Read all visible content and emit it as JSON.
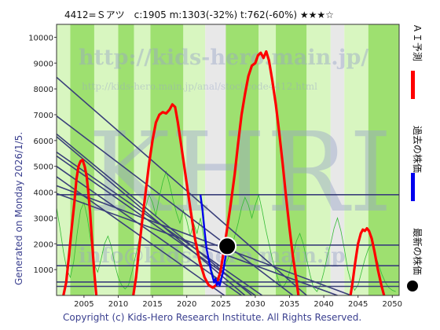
{
  "title": "4412=Ｓアツ　c:1905  m:1303(-32%)  t:762(-60%)  ★★★☆",
  "side_text": "Generated on Monday 2026/1/5.",
  "copyright": "Copyright (c) Kids-Hero Research Institute. All Rights Reserved.",
  "watermarks": {
    "url_main": "http://kids-hero.main.jp/",
    "url_sub": "http://kids-hero.main.jp/anal/stockcode4412.html",
    "big": "KHRI",
    "email": "info@kids-hero.main.jp"
  },
  "legend": [
    {
      "label": "ＡＩ予測",
      "color": "#ff0000"
    },
    {
      "label": "過去の株価",
      "color": "#0000ee"
    },
    {
      "label": "最新の株価",
      "color": "#000000"
    }
  ],
  "colors": {
    "band_dark": "#9ee070",
    "band_light": "#d8f6c0",
    "band_gray": "#e8e8e8",
    "trend": "#3a3f7a",
    "ai": "#ff0000",
    "past": "#0000ee",
    "thin_green": "#33bb33",
    "border": "#333333"
  },
  "chart_data": {
    "type": "line",
    "xlim": [
      2001,
      2051
    ],
    "ylim": [
      0,
      10500
    ],
    "x_ticks": [
      "2005",
      "2010",
      "2015",
      "2020",
      "2025",
      "2030",
      "2035",
      "2040",
      "2045",
      "2050"
    ],
    "y_ticks": [
      "1000",
      "2000",
      "3000",
      "4000",
      "5000",
      "6000",
      "7000",
      "8000",
      "9000",
      "10000"
    ],
    "bands": [
      {
        "x0": 2001.0,
        "x1": 2003.0,
        "shade": "light"
      },
      {
        "x0": 2003.0,
        "x1": 2006.5,
        "shade": "dark"
      },
      {
        "x0": 2006.5,
        "x1": 2010.0,
        "shade": "light"
      },
      {
        "x0": 2010.0,
        "x1": 2012.3,
        "shade": "dark"
      },
      {
        "x0": 2012.3,
        "x1": 2014.7,
        "shade": "light"
      },
      {
        "x0": 2014.7,
        "x1": 2019.5,
        "shade": "dark"
      },
      {
        "x0": 2019.5,
        "x1": 2022.7,
        "shade": "light"
      },
      {
        "x0": 2022.7,
        "x1": 2025.7,
        "shade": "gray"
      },
      {
        "x0": 2025.7,
        "x1": 2030.5,
        "shade": "dark"
      },
      {
        "x0": 2030.5,
        "x1": 2033.0,
        "shade": "light"
      },
      {
        "x0": 2033.0,
        "x1": 2037.5,
        "shade": "dark"
      },
      {
        "x0": 2037.5,
        "x1": 2041.0,
        "shade": "light"
      },
      {
        "x0": 2041.0,
        "x1": 2043.0,
        "shade": "gray"
      },
      {
        "x0": 2043.0,
        "x1": 2046.5,
        "shade": "light"
      },
      {
        "x0": 2046.5,
        "x1": 2051.0,
        "shade": "dark"
      }
    ],
    "horizontal_lines": [
      3900,
      1950,
      1150,
      520,
      350
    ],
    "trend_lines": [
      {
        "x0": 2001,
        "y0": 8450,
        "x1": 2037.5,
        "y1": 0
      },
      {
        "x0": 2001,
        "y0": 6950,
        "x1": 2035.5,
        "y1": 0
      },
      {
        "x0": 2001,
        "y0": 6250,
        "x1": 2029.5,
        "y1": 0
      },
      {
        "x0": 2001,
        "y0": 6150,
        "x1": 2028.5,
        "y1": 0
      },
      {
        "x0": 2001,
        "y0": 5550,
        "x1": 2031.0,
        "y1": 0
      },
      {
        "x0": 2001,
        "y0": 5400,
        "x1": 2030.0,
        "y1": 0
      },
      {
        "x0": 2001,
        "y0": 5000,
        "x1": 2028.0,
        "y1": 0
      },
      {
        "x0": 2001,
        "y0": 4600,
        "x1": 2025.5,
        "y1": 0
      },
      {
        "x0": 2001,
        "y0": 4250,
        "x1": 2044.0,
        "y1": 0
      },
      {
        "x0": 2001,
        "y0": 3950,
        "x1": 2042.0,
        "y1": 0
      }
    ],
    "series": [
      {
        "name": "ＡＩ予測",
        "points": [
          [
            2002.0,
            0
          ],
          [
            2002.4,
            500
          ],
          [
            2002.8,
            1500
          ],
          [
            2003.2,
            2600
          ],
          [
            2003.6,
            3600
          ],
          [
            2003.9,
            4500
          ],
          [
            2004.2,
            5000
          ],
          [
            2004.5,
            5200
          ],
          [
            2004.8,
            5250
          ],
          [
            2005.1,
            5000
          ],
          [
            2005.4,
            4600
          ],
          [
            2005.6,
            4100
          ],
          [
            2005.9,
            3200
          ],
          [
            2006.2,
            2000
          ],
          [
            2006.5,
            900
          ],
          [
            2006.8,
            0
          ],
          [
            2012.2,
            0
          ],
          [
            2012.6,
            700
          ],
          [
            2013.0,
            1700
          ],
          [
            2013.5,
            2900
          ],
          [
            2014.0,
            4000
          ],
          [
            2014.5,
            5100
          ],
          [
            2015.0,
            6000
          ],
          [
            2015.5,
            6700
          ],
          [
            2016.0,
            7000
          ],
          [
            2016.5,
            7100
          ],
          [
            2017.0,
            7050
          ],
          [
            2017.5,
            7200
          ],
          [
            2017.9,
            7400
          ],
          [
            2018.3,
            7300
          ],
          [
            2018.7,
            6700
          ],
          [
            2019.2,
            5800
          ],
          [
            2019.8,
            4700
          ],
          [
            2020.5,
            3400
          ],
          [
            2021.2,
            2200
          ],
          [
            2021.9,
            1300
          ],
          [
            2022.6,
            700
          ],
          [
            2023.2,
            400
          ],
          [
            2023.8,
            300
          ],
          [
            2024.3,
            400
          ],
          [
            2024.9,
            900
          ],
          [
            2025.4,
            1700
          ],
          [
            2025.9,
            2600
          ],
          [
            2026.4,
            3500
          ],
          [
            2027.0,
            4700
          ],
          [
            2027.5,
            5900
          ],
          [
            2028.0,
            7000
          ],
          [
            2028.5,
            7800
          ],
          [
            2029.0,
            8500
          ],
          [
            2029.5,
            8900
          ],
          [
            2030.0,
            9000
          ],
          [
            2030.4,
            9300
          ],
          [
            2030.8,
            9400
          ],
          [
            2031.2,
            9200
          ],
          [
            2031.6,
            9450
          ],
          [
            2032.0,
            9100
          ],
          [
            2032.5,
            8300
          ],
          [
            2033.0,
            7400
          ],
          [
            2033.5,
            6300
          ],
          [
            2034.0,
            5100
          ],
          [
            2034.5,
            3800
          ],
          [
            2035.0,
            2600
          ],
          [
            2035.5,
            1500
          ],
          [
            2036.0,
            600
          ],
          [
            2036.3,
            0
          ],
          [
            2043.9,
            0
          ],
          [
            2044.2,
            500
          ],
          [
            2044.6,
            1300
          ],
          [
            2045.0,
            2000
          ],
          [
            2045.4,
            2400
          ],
          [
            2045.7,
            2550
          ],
          [
            2046.0,
            2500
          ],
          [
            2046.3,
            2600
          ],
          [
            2046.6,
            2500
          ],
          [
            2047.0,
            2200
          ],
          [
            2047.4,
            1700
          ],
          [
            2047.9,
            1000
          ],
          [
            2048.4,
            400
          ],
          [
            2048.8,
            0
          ]
        ]
      },
      {
        "name": "過去の株価",
        "points": [
          [
            2022.0,
            3900
          ],
          [
            2022.3,
            3300
          ],
          [
            2022.6,
            2500
          ],
          [
            2022.9,
            1800
          ],
          [
            2023.2,
            1400
          ],
          [
            2023.5,
            1000
          ],
          [
            2023.8,
            700
          ],
          [
            2024.0,
            500
          ],
          [
            2024.2,
            650
          ],
          [
            2024.4,
            400
          ],
          [
            2024.6,
            520
          ],
          [
            2024.8,
            380
          ],
          [
            2025.0,
            600
          ],
          [
            2025.3,
            900
          ],
          [
            2025.6,
            1400
          ],
          [
            2025.9,
            1900
          ]
        ]
      },
      {
        "name": "thin",
        "points": [
          [
            2001.0,
            3400
          ],
          [
            2001.5,
            2600
          ],
          [
            2002.0,
            1700
          ],
          [
            2002.5,
            1000
          ],
          [
            2003.0,
            700
          ],
          [
            2003.5,
            1300
          ],
          [
            2004.0,
            2400
          ],
          [
            2004.5,
            3300
          ],
          [
            2005.0,
            3600
          ],
          [
            2005.5,
            3000
          ],
          [
            2006.0,
            2100
          ],
          [
            2006.5,
            1200
          ],
          [
            2007.0,
            900
          ],
          [
            2007.5,
            1400
          ],
          [
            2008.0,
            2000
          ],
          [
            2008.5,
            2300
          ],
          [
            2009.0,
            1900
          ],
          [
            2009.5,
            1200
          ],
          [
            2010.0,
            700
          ],
          [
            2010.5,
            400
          ],
          [
            2011.0,
            250
          ],
          [
            2011.5,
            400
          ],
          [
            2012.0,
            900
          ],
          [
            2012.5,
            1500
          ],
          [
            2013.0,
            2100
          ],
          [
            2013.5,
            2800
          ],
          [
            2014.0,
            3400
          ],
          [
            2014.5,
            3900
          ],
          [
            2015.0,
            3600
          ],
          [
            2015.5,
            3100
          ],
          [
            2016.0,
            3800
          ],
          [
            2016.5,
            4400
          ],
          [
            2017.0,
            4800
          ],
          [
            2017.5,
            4300
          ],
          [
            2018.0,
            3700
          ],
          [
            2018.5,
            3200
          ],
          [
            2019.0,
            2800
          ],
          [
            2019.5,
            3300
          ],
          [
            2020.0,
            2900
          ],
          [
            2020.5,
            2300
          ],
          [
            2021.0,
            2800
          ],
          [
            2021.5,
            2400
          ],
          [
            2022.0,
            3000
          ],
          [
            2022.5,
            2200
          ],
          [
            2023.0,
            1600
          ],
          [
            2023.5,
            1100
          ],
          [
            2024.0,
            700
          ],
          [
            2024.5,
            500
          ],
          [
            2025.0,
            700
          ],
          [
            2025.5,
            1100
          ],
          [
            2026.0,
            1400
          ],
          [
            2026.5,
            1800
          ],
          [
            2027.0,
            2300
          ],
          [
            2027.5,
            2800
          ],
          [
            2028.0,
            3400
          ],
          [
            2028.5,
            3800
          ],
          [
            2029.0,
            3500
          ],
          [
            2029.5,
            3000
          ],
          [
            2030.0,
            3500
          ],
          [
            2030.5,
            3900
          ],
          [
            2031.0,
            3300
          ],
          [
            2031.5,
            2600
          ],
          [
            2032.0,
            2000
          ],
          [
            2032.5,
            1400
          ],
          [
            2033.0,
            900
          ],
          [
            2033.5,
            500
          ],
          [
            2034.0,
            300
          ],
          [
            2034.5,
            500
          ],
          [
            2035.0,
            900
          ],
          [
            2035.5,
            1500
          ],
          [
            2036.0,
            2100
          ],
          [
            2036.5,
            2400
          ],
          [
            2037.0,
            2000
          ],
          [
            2037.5,
            1400
          ],
          [
            2038.0,
            800
          ],
          [
            2038.5,
            300
          ],
          [
            2039.0,
            150
          ],
          [
            2039.5,
            400
          ],
          [
            2040.0,
            900
          ],
          [
            2040.5,
            1500
          ],
          [
            2041.0,
            2000
          ],
          [
            2041.5,
            2600
          ],
          [
            2042.0,
            3000
          ],
          [
            2042.5,
            2500
          ],
          [
            2043.0,
            1800
          ],
          [
            2043.5,
            1000
          ],
          [
            2044.0,
            500
          ],
          [
            2044.5,
            200
          ],
          [
            2045.0,
            400
          ],
          [
            2045.5,
            900
          ],
          [
            2046.0,
            1400
          ],
          [
            2046.5,
            1800
          ],
          [
            2047.0,
            2000
          ],
          [
            2047.5,
            1600
          ],
          [
            2048.0,
            1200
          ],
          [
            2048.5,
            800
          ],
          [
            2049.0,
            500
          ],
          [
            2049.5,
            300
          ],
          [
            2050.0,
            200
          ],
          [
            2050.5,
            150
          ]
        ]
      }
    ],
    "latest": {
      "x": 2025.9,
      "y": 1905
    }
  }
}
